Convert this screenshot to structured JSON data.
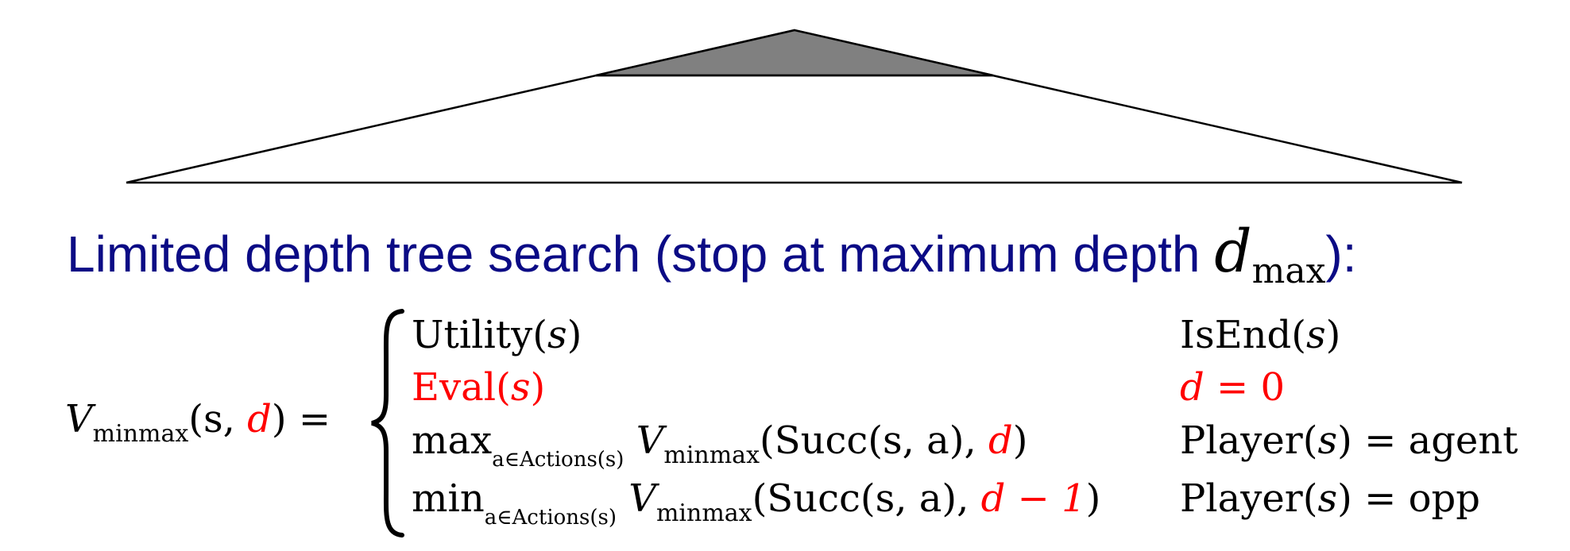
{
  "heading": {
    "text": "Limited depth tree search (stop at maximum depth ",
    "d_symbol": "d",
    "d_subscript": "max",
    "suffix": "):"
  },
  "equation": {
    "lhs": {
      "V": "V",
      "sub": "minmax",
      "open": "(s, ",
      "d": "d",
      "close": ") ="
    },
    "cases": [
      {
        "expr_a": "Utility(",
        "expr_s": "s",
        "expr_b": ")",
        "cond_a": "IsEnd(",
        "cond_s": "s",
        "cond_b": ")"
      },
      {
        "expr_a": "Eval(",
        "expr_s": "s",
        "expr_b": ")",
        "cond_d": "d",
        "cond_rest": " = 0"
      },
      {
        "op": "max",
        "op_sub": "a∈Actions(s)",
        "V": "V",
        "V_sub": "minmax",
        "args": "(Succ(s, a), ",
        "d": "d",
        "close": ")",
        "cond_a": "Player(",
        "cond_s": "s",
        "cond_b": ") = agent"
      },
      {
        "op": "min",
        "op_sub": "a∈Actions(s)",
        "V": "V",
        "V_sub": "minmax",
        "args": "(Succ(s, a), ",
        "d": "d − 1",
        "close": ")",
        "cond_a": "Player(",
        "cond_s": "s",
        "cond_b": ") = opp"
      }
    ]
  },
  "colors": {
    "heading": "#0b0b85",
    "highlight": "#ff0000",
    "tree_fill": "#808080",
    "tree_stroke": "#000000"
  }
}
